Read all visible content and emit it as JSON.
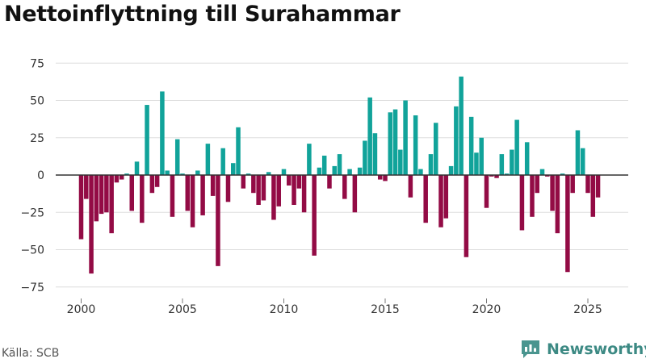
{
  "title": "Nettoinflyttning till Surahammar",
  "source": "Källa: SCB",
  "brand": {
    "name": "Newsworthy",
    "icon": "newsworthy-logo-icon"
  },
  "colors": {
    "positive": "#11a39a",
    "negative": "#930b45",
    "grid": "#dddddd",
    "zero_line": "#333333",
    "text": "#333333"
  },
  "chart_data": {
    "type": "bar",
    "title": "Nettoinflyttning till Surahammar",
    "xlabel": "",
    "ylabel": "",
    "x_tick_labels": [
      "2000",
      "2005",
      "2010",
      "2015",
      "2020",
      "2025"
    ],
    "y_tick_labels": [
      "75",
      "50",
      "25",
      "0",
      "−25",
      "−50",
      "−75"
    ],
    "ylim": [
      -80,
      80
    ],
    "xlim": [
      1999.1,
      2027.1
    ],
    "start": 2000.0,
    "step": 0.25,
    "values": [
      -43,
      -16,
      -66,
      -31,
      -26,
      -25,
      -39,
      -5,
      -3,
      1,
      -24,
      9,
      -32,
      47,
      -12,
      -8,
      56,
      3,
      -28,
      24,
      1,
      -24,
      -35,
      3,
      -27,
      21,
      -14,
      -61,
      18,
      -18,
      8,
      32,
      -9,
      1,
      -12,
      -20,
      -17,
      2,
      -30,
      -21,
      4,
      -7,
      -20,
      -9,
      -25,
      21,
      -54,
      5,
      13,
      -9,
      6,
      14,
      -16,
      4,
      -25,
      5,
      23,
      52,
      28,
      -3,
      -4,
      42,
      44,
      17,
      50,
      -15,
      40,
      4,
      -32,
      14,
      35,
      -35,
      -29,
      6,
      46,
      66,
      -55,
      39,
      15,
      25,
      -22,
      -1,
      -2,
      14,
      1,
      17,
      37,
      -37,
      22,
      -28,
      -12,
      4,
      -1,
      -24,
      -39,
      1,
      -65,
      -12,
      30,
      18,
      -12,
      -28,
      -15
    ]
  }
}
